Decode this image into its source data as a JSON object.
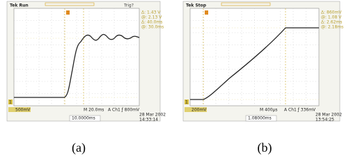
{
  "panels": [
    {
      "status": "Tek Run",
      "trigger": "Trig?",
      "readouts": [
        "Δ: 1.43 V",
        "@: 2.13 V",
        "Δ: 40.0ms",
        "@: 30.0ms"
      ],
      "channel_marker": "1",
      "scale": "500mV",
      "timebase": "M 20.0ms",
      "trigger_setting": "A Ch1 ƒ 800mV",
      "date": "28 Mar 2002",
      "time": "14:33:14",
      "position": "10.0000ms",
      "caption": "(a)"
    },
    {
      "status": "Tek Stop",
      "trigger": "",
      "readouts": [
        "Δ: 860mV",
        "@: 1.08 V",
        "Δ: 2.62ms",
        "@: 2.18ms"
      ],
      "channel_marker": "1",
      "scale": "200mV",
      "timebase": "M 400µs",
      "trigger_setting": "A Ch1 ƒ 336mV",
      "date": "28 Mar 2002",
      "time": "13:54:25",
      "position": "1.08000ms",
      "caption": "(b)"
    }
  ]
}
